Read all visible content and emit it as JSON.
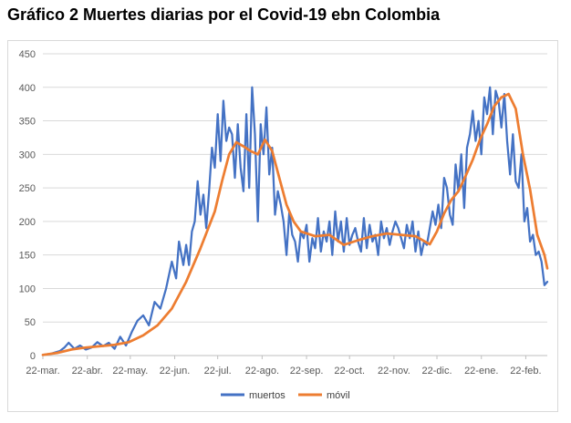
{
  "title": "Gráfico 2 Muertes diarias por el Covid-19 ebn Colombia",
  "chart_data": {
    "type": "line",
    "title": "",
    "xlabel": "",
    "ylabel": "",
    "ylim": [
      0,
      450
    ],
    "y_ticks": [
      0,
      50,
      100,
      150,
      200,
      250,
      300,
      350,
      400,
      450
    ],
    "x_tick_labels": [
      "22-mar.",
      "22-abr.",
      "22-may.",
      "22-jun.",
      "22-jul.",
      "22-ago.",
      "22-sep.",
      "22-oct.",
      "22-nov.",
      "22-dic.",
      "22-ene.",
      "22-feb."
    ],
    "x_tick_day_offsets": [
      0,
      31,
      61,
      92,
      122,
      153,
      184,
      214,
      245,
      275,
      306,
      337
    ],
    "x_range_days": [
      0,
      352
    ],
    "grid": true,
    "legend_position": "bottom",
    "series": [
      {
        "name": "muertos",
        "color": "#4472c4",
        "x_days": [
          0,
          6,
          12,
          15,
          18,
          22,
          26,
          30,
          34,
          38,
          42,
          46,
          50,
          54,
          58,
          62,
          66,
          70,
          74,
          78,
          82,
          86,
          90,
          93,
          95,
          98,
          100,
          102,
          104,
          106,
          108,
          110,
          112,
          114,
          116,
          118,
          120,
          122,
          124,
          126,
          128,
          130,
          132,
          134,
          136,
          138,
          140,
          142,
          144,
          146,
          148,
          150,
          152,
          154,
          156,
          158,
          160,
          162,
          164,
          166,
          168,
          170,
          172,
          174,
          176,
          178,
          180,
          182,
          184,
          186,
          188,
          190,
          192,
          194,
          196,
          198,
          200,
          202,
          204,
          206,
          208,
          210,
          212,
          214,
          216,
          218,
          220,
          222,
          224,
          226,
          228,
          230,
          232,
          234,
          236,
          238,
          240,
          242,
          244,
          246,
          248,
          250,
          252,
          254,
          256,
          258,
          260,
          262,
          264,
          266,
          268,
          270,
          272,
          274,
          276,
          278,
          280,
          282,
          284,
          286,
          288,
          290,
          292,
          294,
          296,
          298,
          300,
          302,
          304,
          306,
          308,
          310,
          312,
          314,
          316,
          318,
          320,
          322,
          324,
          326,
          328,
          330,
          332,
          334,
          336,
          338,
          340,
          342,
          344,
          346,
          348,
          350,
          352
        ],
        "values": [
          1,
          3,
          7,
          12,
          19,
          10,
          15,
          9,
          12,
          20,
          14,
          19,
          10,
          28,
          15,
          35,
          52,
          60,
          45,
          80,
          70,
          100,
          140,
          115,
          170,
          135,
          165,
          135,
          185,
          200,
          260,
          210,
          240,
          190,
          245,
          310,
          280,
          360,
          290,
          380,
          320,
          340,
          330,
          265,
          345,
          280,
          245,
          360,
          250,
          400,
          330,
          200,
          345,
          300,
          370,
          270,
          310,
          210,
          245,
          225,
          200,
          150,
          215,
          180,
          170,
          140,
          185,
          175,
          195,
          140,
          175,
          160,
          205,
          155,
          185,
          170,
          200,
          150,
          215,
          170,
          200,
          155,
          205,
          165,
          180,
          190,
          170,
          155,
          205,
          160,
          195,
          170,
          180,
          150,
          200,
          175,
          190,
          165,
          185,
          200,
          190,
          175,
          160,
          195,
          175,
          200,
          155,
          185,
          150,
          170,
          165,
          190,
          215,
          195,
          225,
          190,
          265,
          250,
          210,
          195,
          285,
          245,
          300,
          220,
          310,
          330,
          365,
          320,
          350,
          300,
          385,
          360,
          400,
          330,
          395,
          380,
          340,
          390,
          320,
          270,
          330,
          260,
          250,
          300,
          200,
          220,
          170,
          180,
          150,
          155,
          140,
          105,
          110
        ]
      },
      {
        "name": "móvil",
        "color": "#ed7d31",
        "x_days": [
          0,
          10,
          20,
          30,
          40,
          50,
          60,
          70,
          80,
          90,
          100,
          110,
          120,
          125,
          130,
          135,
          140,
          145,
          150,
          155,
          160,
          165,
          170,
          175,
          180,
          190,
          200,
          210,
          220,
          230,
          240,
          250,
          260,
          270,
          275,
          280,
          285,
          290,
          295,
          300,
          305,
          310,
          315,
          320,
          325,
          330,
          335,
          340,
          345,
          350,
          352
        ],
        "values": [
          1,
          4,
          9,
          12,
          14,
          16,
          20,
          30,
          45,
          70,
          110,
          160,
          215,
          260,
          300,
          318,
          312,
          305,
          300,
          322,
          305,
          265,
          225,
          200,
          185,
          178,
          180,
          165,
          172,
          178,
          182,
          180,
          178,
          166,
          185,
          212,
          232,
          245,
          268,
          292,
          322,
          345,
          372,
          385,
          390,
          368,
          300,
          248,
          180,
          150,
          130
        ]
      }
    ]
  }
}
